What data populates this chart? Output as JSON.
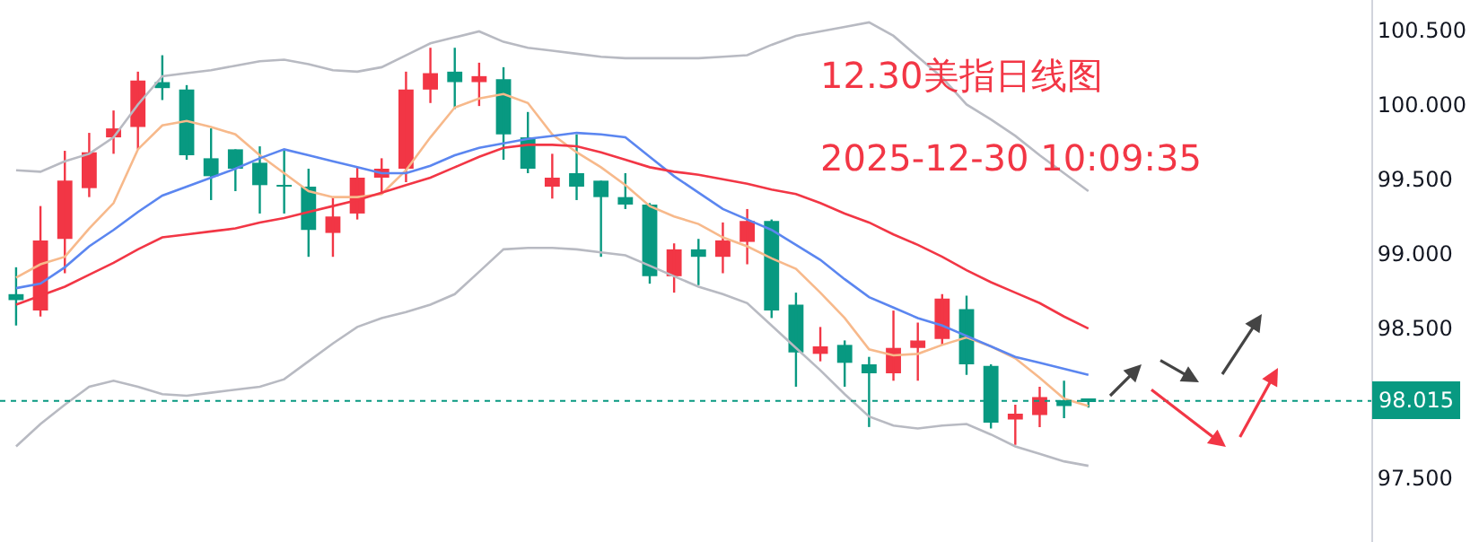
{
  "chart_data": {
    "type": "candlestick",
    "title": "12.30美指日线图",
    "subtitle": "2025-12-30 10:09:35",
    "categories": [
      null,
      null,
      null,
      null,
      null,
      null,
      null,
      null,
      null,
      null,
      null,
      null,
      null,
      null,
      null,
      null,
      null,
      null,
      null,
      null,
      null,
      null,
      null,
      null,
      null,
      null,
      null,
      null,
      null,
      null,
      null,
      null,
      null,
      null,
      null,
      null,
      null,
      null,
      null,
      null,
      null,
      null,
      null,
      null,
      null
    ],
    "ohlc": [
      [
        98.73,
        98.91,
        98.52,
        98.69
      ],
      [
        98.62,
        99.32,
        98.58,
        99.09
      ],
      [
        99.1,
        99.69,
        98.87,
        99.49
      ],
      [
        99.44,
        99.81,
        99.38,
        99.68
      ],
      [
        99.78,
        99.96,
        99.67,
        99.84
      ],
      [
        99.85,
        100.22,
        99.7,
        100.16
      ],
      [
        100.15,
        100.33,
        100.03,
        100.11
      ],
      [
        100.1,
        100.13,
        99.63,
        99.66
      ],
      [
        99.64,
        99.84,
        99.36,
        99.52
      ],
      [
        99.7,
        99.7,
        99.42,
        99.57
      ],
      [
        99.61,
        99.72,
        99.27,
        99.46
      ],
      [
        99.46,
        99.7,
        99.27,
        99.45
      ],
      [
        99.45,
        99.57,
        98.98,
        99.16
      ],
      [
        99.14,
        99.38,
        98.98,
        99.25
      ],
      [
        99.27,
        99.58,
        99.23,
        99.51
      ],
      [
        99.51,
        99.64,
        99.4,
        99.57
      ],
      [
        99.57,
        100.22,
        99.48,
        100.1
      ],
      [
        100.1,
        100.38,
        100.01,
        100.21
      ],
      [
        100.22,
        100.38,
        99.97,
        100.15
      ],
      [
        100.15,
        100.28,
        99.99,
        100.19
      ],
      [
        100.17,
        100.25,
        99.63,
        99.8
      ],
      [
        99.78,
        99.95,
        99.54,
        99.57
      ],
      [
        99.45,
        99.67,
        99.37,
        99.51
      ],
      [
        99.54,
        99.8,
        99.36,
        99.45
      ],
      [
        99.49,
        99.49,
        98.98,
        99.38
      ],
      [
        99.38,
        99.54,
        99.3,
        99.33
      ],
      [
        99.33,
        99.34,
        98.8,
        98.85
      ],
      [
        98.85,
        99.07,
        98.74,
        99.03
      ],
      [
        99.03,
        99.1,
        98.79,
        98.98
      ],
      [
        98.98,
        99.21,
        98.87,
        99.09
      ],
      [
        99.08,
        99.3,
        98.93,
        99.22
      ],
      [
        99.22,
        99.23,
        98.57,
        98.62
      ],
      [
        98.66,
        98.74,
        98.11,
        98.34
      ],
      [
        98.33,
        98.51,
        98.28,
        98.38
      ],
      [
        98.39,
        98.42,
        98.11,
        98.27
      ],
      [
        98.26,
        98.31,
        97.84,
        98.2
      ],
      [
        98.2,
        98.62,
        98.15,
        98.37
      ],
      [
        98.37,
        98.54,
        98.15,
        98.42
      ],
      [
        98.43,
        98.73,
        98.39,
        98.7
      ],
      [
        98.63,
        98.72,
        98.19,
        98.26
      ],
      [
        98.25,
        98.26,
        97.83,
        97.87
      ],
      [
        97.89,
        97.99,
        97.72,
        97.93
      ],
      [
        97.92,
        98.11,
        97.84,
        98.04
      ],
      [
        98.02,
        98.15,
        97.9,
        97.98
      ],
      [
        98.02,
        98.03,
        97.97,
        98.015
      ]
    ],
    "colors": [
      "#089981",
      "#f23645",
      "#f23645",
      "#f23645",
      "#f23645",
      "#f23645",
      "#089981",
      "#089981",
      "#089981",
      "#089981",
      "#089981",
      "#089981",
      "#089981",
      "#f23645",
      "#f23645",
      "#f23645",
      "#f23645",
      "#f23645",
      "#089981",
      "#f23645",
      "#089981",
      "#089981",
      "#f23645",
      "#089981",
      "#089981",
      "#089981",
      "#089981",
      "#f23645",
      "#089981",
      "#f23645",
      "#f23645",
      "#089981",
      "#089981",
      "#f23645",
      "#089981",
      "#089981",
      "#f23645",
      "#f23645",
      "#f23645",
      "#089981",
      "#089981",
      "#f23645",
      "#f23645",
      "#089981",
      "#089981"
    ],
    "series": [
      {
        "type": "line",
        "color": "#f7b98b",
        "values": [
          98.84,
          98.93,
          98.98,
          99.17,
          99.34,
          99.7,
          99.86,
          99.89,
          99.85,
          99.8,
          99.66,
          99.54,
          99.42,
          99.38,
          99.38,
          99.4,
          99.56,
          99.78,
          99.98,
          100.04,
          100.07,
          100.01,
          99.8,
          99.68,
          99.58,
          99.46,
          99.32,
          99.25,
          99.2,
          99.11,
          99.05,
          98.97,
          98.9,
          98.74,
          98.57,
          98.36,
          98.32,
          98.33,
          98.39,
          98.44,
          98.38,
          98.3,
          98.17,
          98.03,
          97.98
        ]
      },
      {
        "type": "line",
        "color": "#5b86f0",
        "values": [
          98.77,
          98.8,
          98.91,
          99.05,
          99.16,
          99.28,
          99.39,
          99.45,
          99.51,
          99.57,
          99.64,
          99.7,
          99.66,
          99.62,
          99.58,
          99.54,
          99.54,
          99.59,
          99.66,
          99.71,
          99.74,
          99.77,
          99.79,
          99.81,
          99.8,
          99.78,
          99.65,
          99.52,
          99.41,
          99.3,
          99.23,
          99.16,
          99.06,
          98.96,
          98.83,
          98.71,
          98.64,
          98.57,
          98.52,
          98.45,
          98.38,
          98.31,
          98.27,
          98.23,
          98.19
        ]
      },
      {
        "type": "line",
        "color": "#f23645",
        "values": [
          98.66,
          98.72,
          98.78,
          98.86,
          98.94,
          99.03,
          99.11,
          99.13,
          99.15,
          99.17,
          99.21,
          99.24,
          99.28,
          99.32,
          99.36,
          99.41,
          99.46,
          99.51,
          99.58,
          99.65,
          99.71,
          99.73,
          99.73,
          99.72,
          99.68,
          99.63,
          99.58,
          99.55,
          99.53,
          99.5,
          99.47,
          99.43,
          99.4,
          99.34,
          99.27,
          99.21,
          99.13,
          99.06,
          98.98,
          98.89,
          98.81,
          98.74,
          98.67,
          98.58,
          98.5
        ]
      },
      {
        "type": "line",
        "color": "#b8bac2",
        "values": [
          99.56,
          99.55,
          99.62,
          99.67,
          99.78,
          100.0,
          100.19,
          100.21,
          100.23,
          100.26,
          100.29,
          100.3,
          100.27,
          100.23,
          100.22,
          100.25,
          100.33,
          100.41,
          100.45,
          100.49,
          100.42,
          100.38,
          100.36,
          100.34,
          100.32,
          100.31,
          100.31,
          100.31,
          100.31,
          100.32,
          100.33,
          100.4,
          100.46,
          100.49,
          100.52,
          100.55,
          100.46,
          100.32,
          100.18,
          100.0,
          99.9,
          99.79,
          99.66,
          99.54,
          99.42
        ]
      },
      {
        "type": "line",
        "color": "#b8bac2",
        "values": [
          97.71,
          97.86,
          97.99,
          98.11,
          98.15,
          98.11,
          98.06,
          98.05,
          98.07,
          98.09,
          98.11,
          98.16,
          98.28,
          98.4,
          98.51,
          98.57,
          98.61,
          98.66,
          98.73,
          98.88,
          99.03,
          99.04,
          99.04,
          99.03,
          99.01,
          98.99,
          98.92,
          98.85,
          98.78,
          98.73,
          98.67,
          98.52,
          98.37,
          98.22,
          98.06,
          97.91,
          97.85,
          97.83,
          97.85,
          97.86,
          97.79,
          97.71,
          97.66,
          97.61,
          97.58
        ]
      }
    ],
    "ref_lines": [
      {
        "axis": "y",
        "value": 98.015,
        "label": "98.015",
        "color": "#089981",
        "line_style": "dotted"
      }
    ],
    "ylim": [
      97.07,
      100.7
    ],
    "yticks": [
      {
        "value": 97.5,
        "label": "97.500"
      },
      {
        "value": 98.5,
        "label": "98.500"
      },
      {
        "value": 99.0,
        "label": "99.000"
      },
      {
        "value": 99.5,
        "label": "99.500"
      },
      {
        "value": 100.0,
        "label": "100.000"
      },
      {
        "value": 100.5,
        "label": "100.500"
      }
    ],
    "tick_labels": "y"
  }
}
